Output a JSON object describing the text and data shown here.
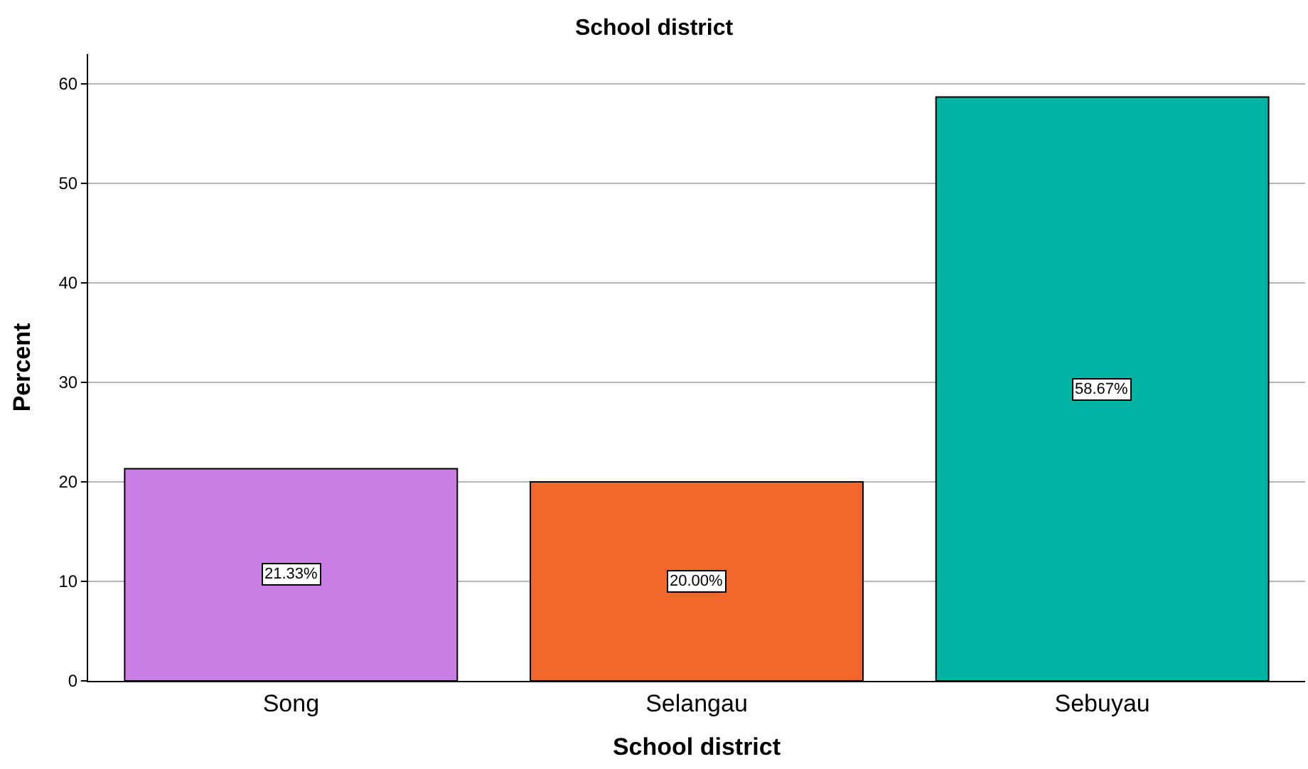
{
  "chart_data": {
    "type": "bar",
    "title": "School district",
    "xlabel": "School district",
    "ylabel": "Percent",
    "categories": [
      "Song",
      "Selangau",
      "Sebuyau"
    ],
    "values": [
      21.33,
      20.0,
      58.67
    ],
    "value_labels": [
      "21.33%",
      "20.00%",
      "58.67%"
    ],
    "colors": [
      "#c97ee4",
      "#f2682c",
      "#00b3a2"
    ],
    "ylim": [
      0,
      63
    ],
    "yticks": [
      0,
      10,
      20,
      30,
      40,
      50,
      60
    ],
    "grid": "y"
  }
}
